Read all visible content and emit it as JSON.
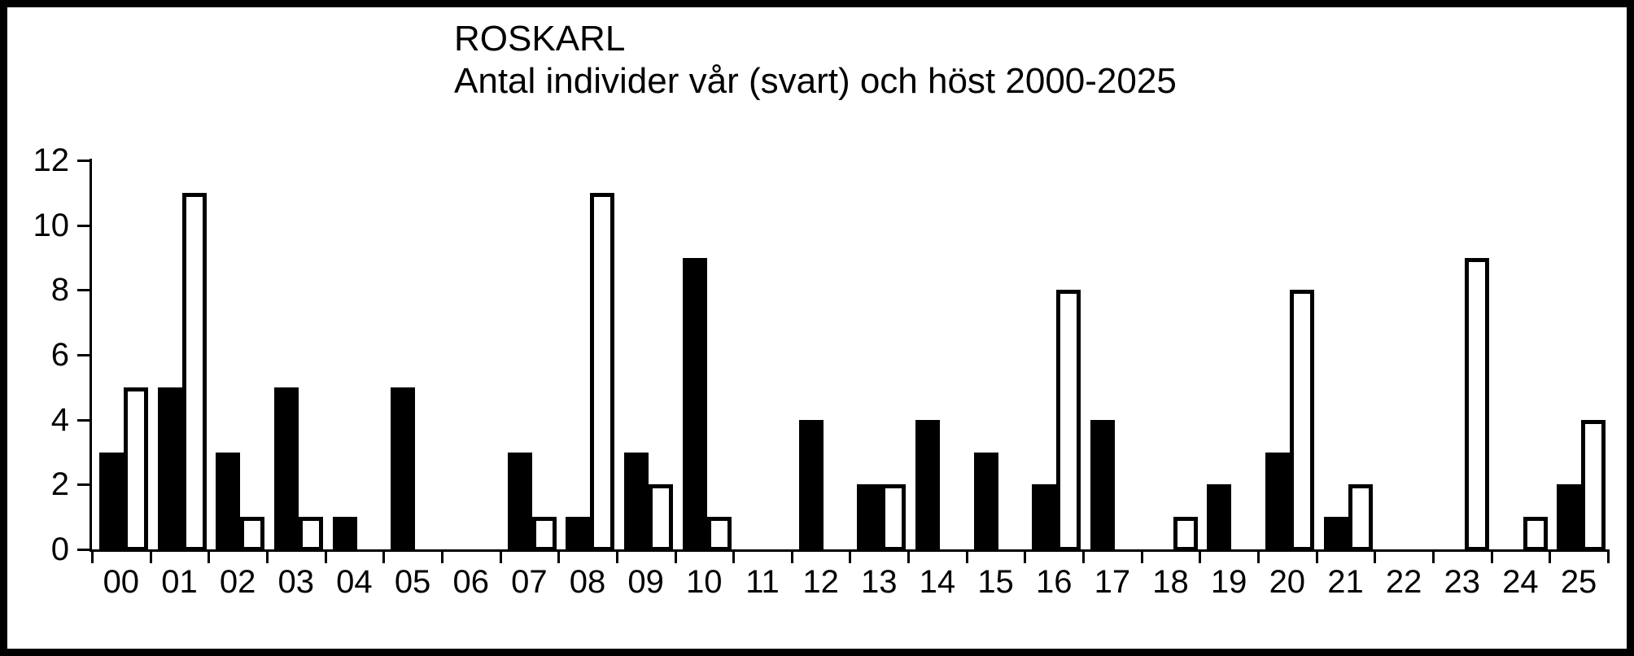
{
  "chart_data": {
    "type": "bar",
    "title": "ROSKARL",
    "subtitle": "Antal individer vår (svart) och höst 2000-2025",
    "categories": [
      "00",
      "01",
      "02",
      "03",
      "04",
      "05",
      "06",
      "07",
      "08",
      "09",
      "10",
      "11",
      "12",
      "13",
      "14",
      "15",
      "16",
      "17",
      "18",
      "19",
      "20",
      "21",
      "22",
      "23",
      "24",
      "25"
    ],
    "series": [
      {
        "name": "vår (svart)",
        "fill": "#000000",
        "values": [
          3,
          5,
          3,
          5,
          1,
          5,
          0,
          3,
          1,
          3,
          9,
          0,
          4,
          2,
          4,
          3,
          2,
          4,
          0,
          2,
          3,
          1,
          0,
          0,
          0,
          2
        ]
      },
      {
        "name": "höst",
        "fill": "#ffffff",
        "values": [
          5,
          11,
          1,
          1,
          0,
          0,
          0,
          1,
          11,
          2,
          1,
          0,
          0,
          2,
          0,
          0,
          8,
          0,
          1,
          0,
          8,
          2,
          0,
          9,
          1,
          4
        ]
      }
    ],
    "ylim": [
      0,
      12
    ],
    "y_ticks": [
      0,
      2,
      4,
      6,
      8,
      10,
      12
    ],
    "grid": false,
    "bar_outline": "#000000",
    "background": "#ffffff"
  }
}
